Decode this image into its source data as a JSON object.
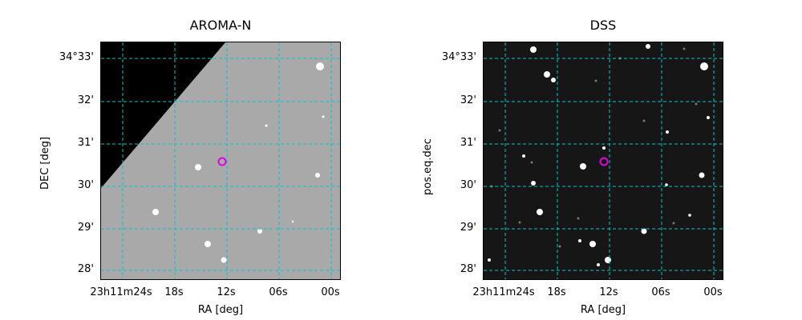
{
  "panels": [
    {
      "title": "AROMA-N",
      "xlabel": "RA [deg]",
      "ylabel": "DEC [deg]",
      "yticks": [
        "34°33'",
        "32'",
        "31'",
        "30'",
        "29'",
        "28'"
      ],
      "xticks": [
        "23h11m24s",
        "18s",
        "12s",
        "06s",
        "00s"
      ],
      "image_style": "grayscale survey image with black masked upper-left region"
    },
    {
      "title": "DSS",
      "xlabel": "RA [deg]",
      "ylabel": "pos.eq.dec",
      "yticks": [
        "34°33'",
        "32'",
        "31'",
        "30'",
        "29'",
        "28'"
      ],
      "xticks": [
        "23h11m24s",
        "18s",
        "12s",
        "06s",
        "00s"
      ],
      "image_style": "dark sky survey image"
    }
  ],
  "colors": {
    "grid": "#00c8c8",
    "marker": "#e000e0",
    "aroma_bg": "#a8a8a8",
    "dss_bg": "#1a1a1a"
  }
}
